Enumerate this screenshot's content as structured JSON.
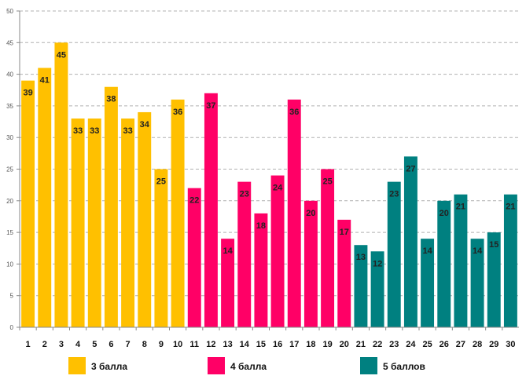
{
  "chart_data": {
    "type": "bar",
    "title": "",
    "xlabel": "",
    "ylabel": "",
    "ylim": [
      0,
      50
    ],
    "yticks": [
      0,
      5,
      10,
      15,
      20,
      25,
      30,
      35,
      40,
      45,
      50
    ],
    "grid": true,
    "legend_position": "bottom",
    "categories": [
      "1",
      "2",
      "3",
      "4",
      "5",
      "6",
      "7",
      "8",
      "9",
      "10",
      "11",
      "12",
      "13",
      "14",
      "15",
      "16",
      "17",
      "18",
      "19",
      "20",
      "21",
      "22",
      "23",
      "24",
      "25",
      "26",
      "27",
      "28",
      "29",
      "30"
    ],
    "values": [
      39,
      41,
      45,
      33,
      33,
      38,
      33,
      34,
      25,
      36,
      22,
      37,
      14,
      23,
      18,
      24,
      36,
      20,
      25,
      17,
      13,
      12,
      23,
      27,
      14,
      20,
      21,
      14,
      15,
      21
    ],
    "bar_series_index": [
      0,
      0,
      0,
      0,
      0,
      0,
      0,
      0,
      0,
      0,
      1,
      1,
      1,
      1,
      1,
      1,
      1,
      1,
      1,
      1,
      2,
      2,
      2,
      2,
      2,
      2,
      2,
      2,
      2,
      2
    ],
    "series": [
      {
        "name": "3 балла",
        "color": "#FFC000"
      },
      {
        "name": "4 балла",
        "color": "#FF0066"
      },
      {
        "name": "5 баллов",
        "color": "#008080"
      }
    ]
  }
}
